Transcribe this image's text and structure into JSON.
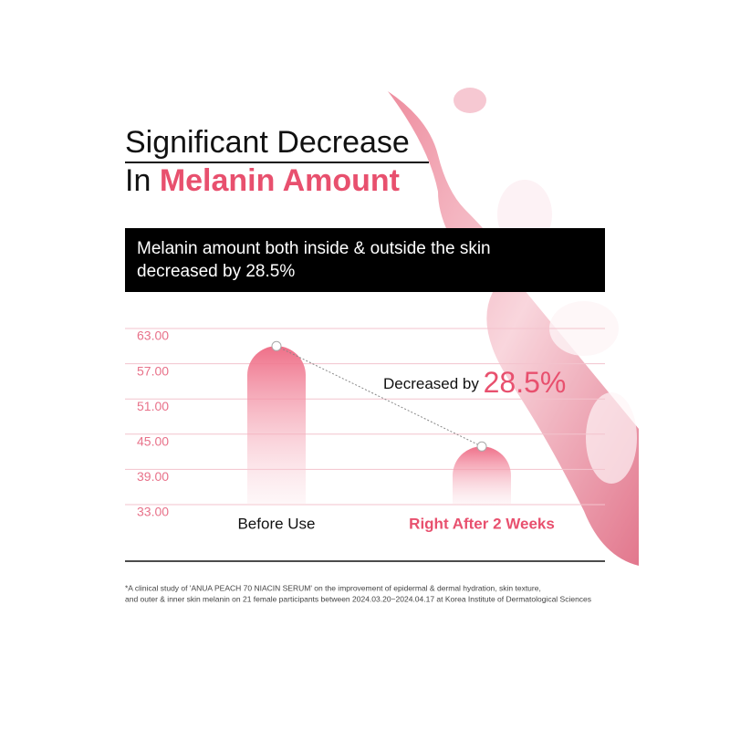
{
  "chart_data": {
    "type": "bar",
    "title_line1": "Significant Decrease",
    "title_line2_prefix": "In",
    "title_line2_highlight": "Melanin Amount",
    "subtitle_lines": [
      "Melanin amount both inside & outside the skin",
      "decreased by 28.5%"
    ],
    "categories": [
      "Before Use",
      "Right After 2 Weeks"
    ],
    "values": [
      60,
      42.9
    ],
    "color": "#e8506e",
    "ylim": [
      33,
      63
    ],
    "yticks": [
      {
        "value": 33,
        "label": "33.00"
      },
      {
        "value": 39,
        "label": "39.00"
      },
      {
        "value": 45,
        "label": "45.00"
      },
      {
        "value": 51,
        "label": "51.00"
      },
      {
        "value": 57,
        "label": "57.00"
      },
      {
        "value": 63,
        "label": "63.00"
      }
    ],
    "grid": true,
    "annotation_prefix": "Decreased by",
    "annotation_value": "28.5%",
    "footnote_lines": [
      "*A clinical study of 'ANUA PEACH 70 NIACIN SERUM' on the improvement of epidermal & dermal hydration, skin texture,",
      "and outer & inner skin melanin on 21 female participants between 2024.03.20~2024.04.17 at Korea Institute of Dermatological Sciences"
    ]
  }
}
